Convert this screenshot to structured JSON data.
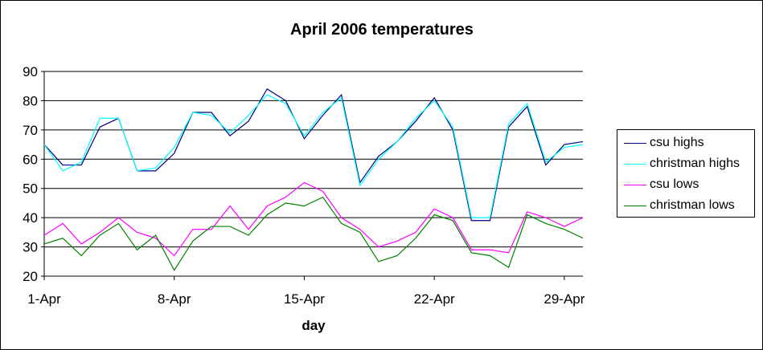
{
  "chart_data": {
    "type": "line",
    "title": "April 2006 temperatures",
    "xlabel": "day",
    "ylabel": "",
    "ylim": [
      20,
      90
    ],
    "yticks": [
      20,
      30,
      40,
      50,
      60,
      70,
      80,
      90
    ],
    "x": [
      1,
      2,
      3,
      4,
      5,
      6,
      7,
      8,
      9,
      10,
      11,
      12,
      13,
      14,
      15,
      16,
      17,
      18,
      19,
      20,
      21,
      22,
      23,
      24,
      25,
      26,
      27,
      28,
      29,
      30
    ],
    "xtick_labels": [
      {
        "day": 1,
        "label": "1-Apr"
      },
      {
        "day": 8,
        "label": "8-Apr"
      },
      {
        "day": 15,
        "label": "15-Apr"
      },
      {
        "day": 22,
        "label": "22-Apr"
      },
      {
        "day": 29,
        "label": "29-Apr"
      }
    ],
    "grid": "horizontal major gridlines",
    "legend_position": "right",
    "series": [
      {
        "name": "csu highs",
        "color": "#000080",
        "values": [
          65,
          58,
          58,
          71,
          74,
          56,
          56,
          62,
          76,
          76,
          68,
          73,
          84,
          80,
          67,
          75,
          82,
          52,
          61,
          66,
          73,
          81,
          70,
          39,
          39,
          71,
          78,
          58,
          65,
          66
        ]
      },
      {
        "name": "christman highs",
        "color": "#00ffff",
        "values": [
          65,
          56,
          59,
          74,
          74,
          56,
          57,
          64,
          76,
          75,
          69,
          75,
          82,
          79,
          68,
          76,
          81,
          51,
          60,
          66,
          74,
          80,
          71,
          40,
          40,
          72,
          79,
          59,
          64,
          65
        ]
      },
      {
        "name": "csu lows",
        "color": "#ff00ff",
        "values": [
          34,
          38,
          31,
          35,
          40,
          35,
          33,
          27,
          36,
          36,
          44,
          36,
          44,
          47,
          52,
          49,
          40,
          36,
          30,
          32,
          35,
          43,
          40,
          29,
          29,
          28,
          42,
          40,
          37,
          40
        ]
      },
      {
        "name": "christman lows",
        "color": "#008000",
        "values": [
          31,
          33,
          27,
          34,
          38,
          29,
          34,
          22,
          32,
          37,
          37,
          34,
          41,
          45,
          44,
          47,
          38,
          35,
          25,
          27,
          33,
          41,
          39,
          28,
          27,
          23,
          41,
          38,
          36,
          33
        ]
      }
    ]
  }
}
